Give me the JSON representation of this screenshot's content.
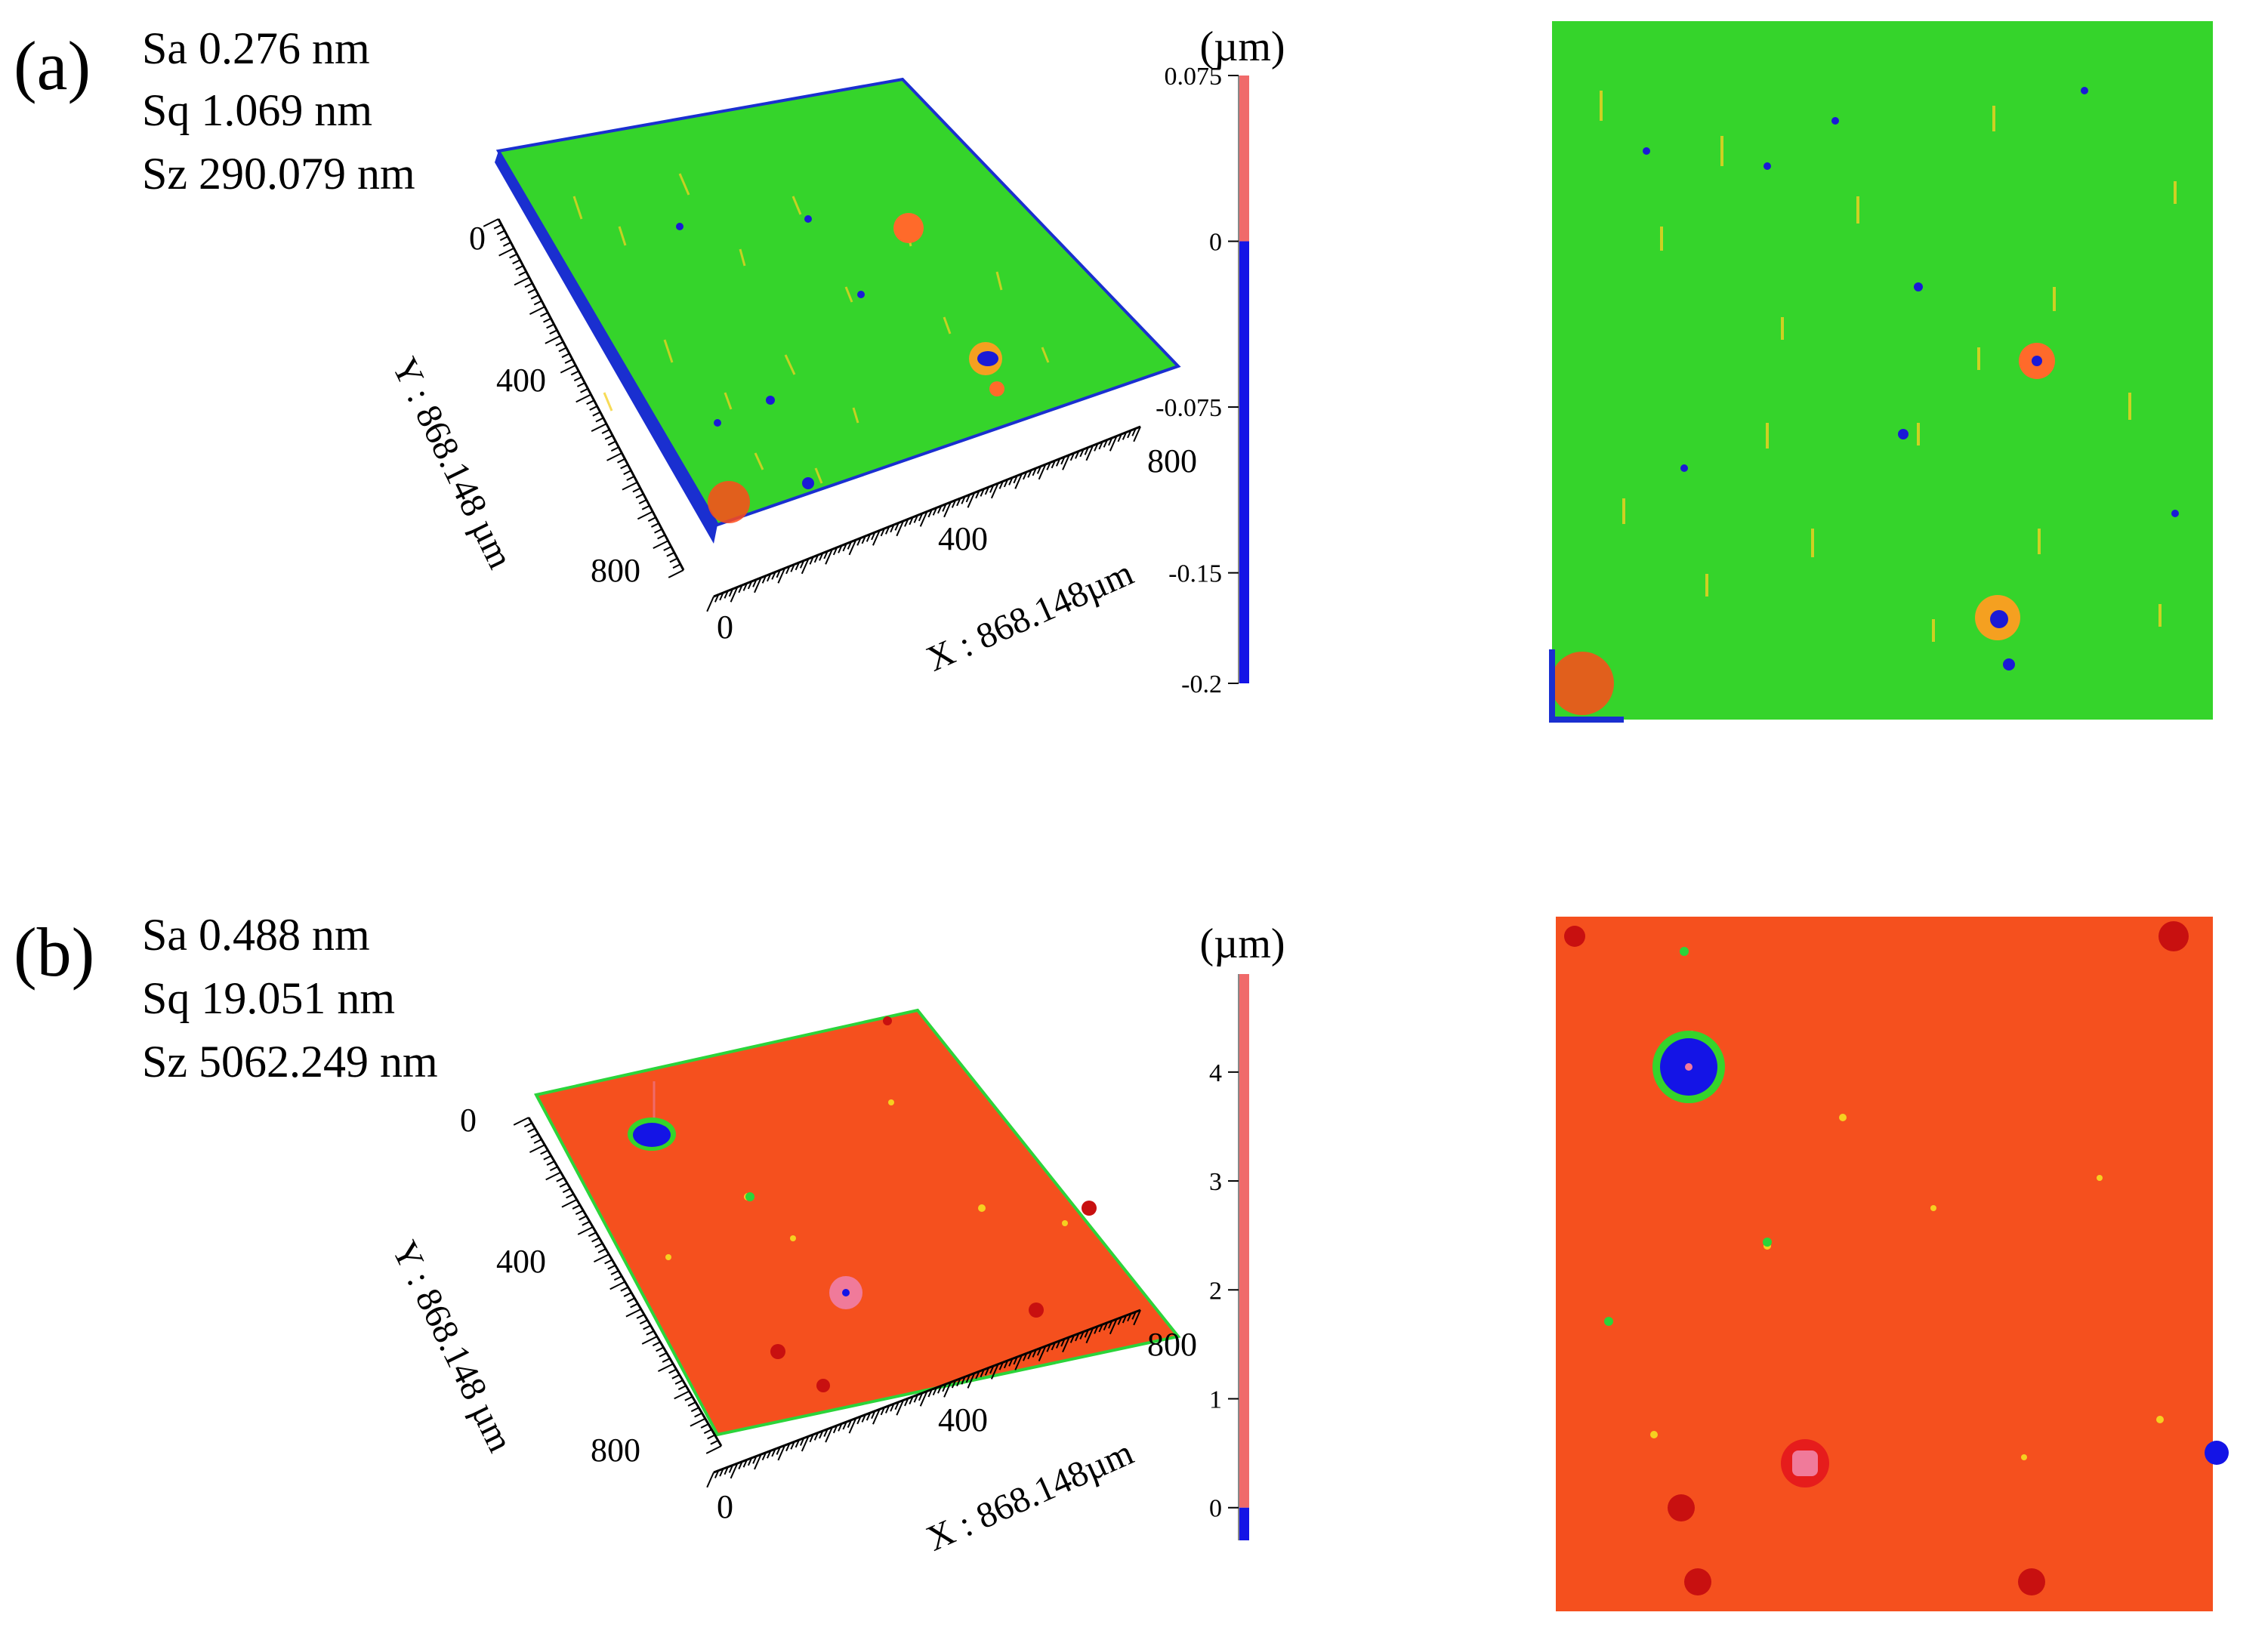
{
  "panels": [
    {
      "id": "a",
      "label": "(a)",
      "stats": [
        "Sa 0.276 nm",
        "Sq 1.069 nm",
        "Sz 290.079 nm"
      ],
      "y_axis": {
        "title": "Y : 868.148 µm",
        "ticks": [
          "0",
          "400",
          "800"
        ]
      },
      "x_axis": {
        "title": "X : 868.148µm",
        "ticks": [
          "0",
          "400",
          "800"
        ]
      },
      "colorbar": {
        "unit": "(µm)",
        "ticks": [
          "0.075",
          "0",
          "-0.075",
          "-0.15",
          "-0.2"
        ],
        "tick_values": [
          0.075,
          0,
          -0.075,
          -0.15,
          -0.2
        ],
        "range": [
          -0.2,
          0.075
        ],
        "bands": [
          {
            "from": 0.075,
            "to": 0,
            "color": "#f06a6a"
          },
          {
            "from": 0,
            "to": -0.2,
            "color": "#1414e6"
          }
        ]
      },
      "surface_color": "#35d42b",
      "edge_color": "#1a2fd0",
      "feature_colors": {
        "high": "#ff3a1a",
        "mid": "#f5d020",
        "low": "#1a1ad6"
      }
    },
    {
      "id": "b",
      "label": "(b)",
      "stats": [
        "Sa 0.488 nm",
        "Sq 19.051 nm",
        "Sz 5062.249 nm"
      ],
      "y_axis": {
        "title": "Y : 868.148 µm",
        "ticks": [
          "0",
          "400",
          "800"
        ]
      },
      "x_axis": {
        "title": "X : 868.148µm",
        "ticks": [
          "0",
          "400",
          "800"
        ]
      },
      "colorbar": {
        "unit": "(µm)",
        "ticks": [
          "4",
          "3",
          "2",
          "1",
          "0"
        ],
        "tick_values": [
          4,
          3,
          2,
          1,
          0
        ],
        "range": [
          -0.3,
          4.9
        ],
        "bands": [
          {
            "from": 4.9,
            "to": 0,
            "color": "#f06a6a"
          },
          {
            "from": 0,
            "to": -0.3,
            "color": "#1414e6"
          }
        ]
      },
      "surface_color": "#f5501e",
      "edge_color": "#2bd43a",
      "feature_colors": {
        "high": "#e61c1c",
        "pit": "#1414e6",
        "ring": "#35d42b"
      }
    }
  ]
}
